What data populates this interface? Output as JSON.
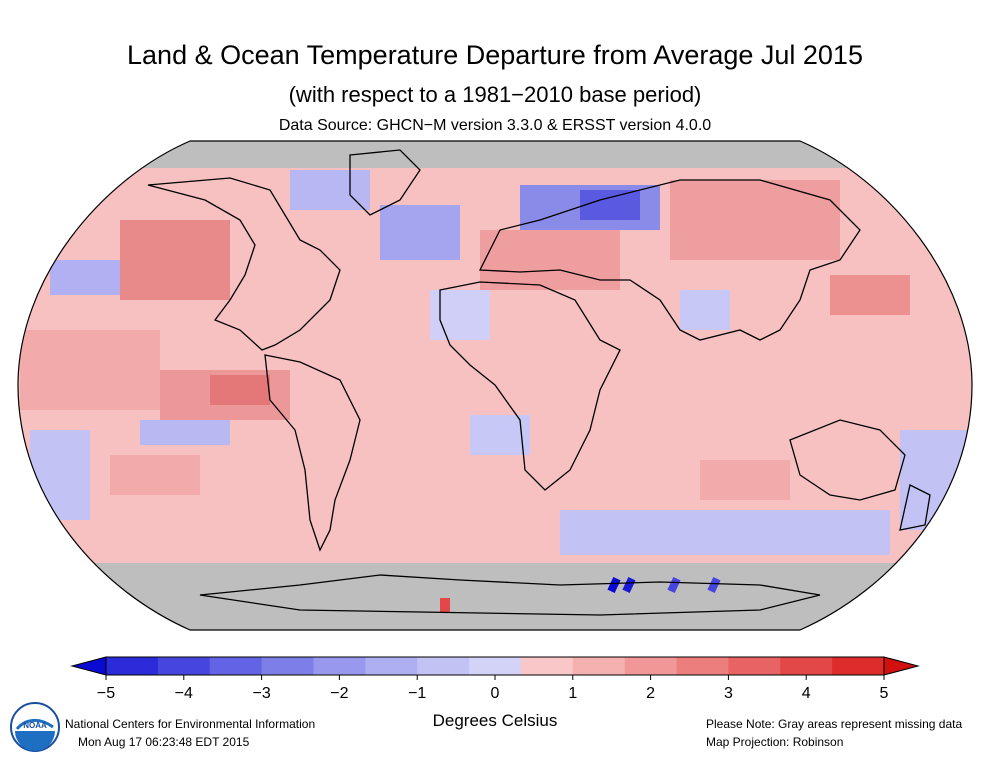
{
  "header": {
    "title": "Land & Ocean Temperature Departure from Average Jul 2015",
    "subtitle": "(with respect to a 1981−2010 base period)",
    "source": "Data Source: GHCN−M version 3.3.0 & ERSST version 4.0.0"
  },
  "map": {
    "projection_label": "Map Projection: Robinson",
    "missing_color": "#bebebe",
    "ocean_default_color": "#f7c1c1"
  },
  "colorbar": {
    "ticks": [
      "−5",
      "−4",
      "−3",
      "−2",
      "−1",
      "0",
      "1",
      "2",
      "3",
      "4",
      "5"
    ],
    "colors": [
      "#0a0ad2",
      "#2b2bd9",
      "#4646df",
      "#6363e5",
      "#7e7ee9",
      "#9898ee",
      "#aeaef2",
      "#c2c2f5",
      "#d3d3f8",
      "#f9c7c7",
      "#f5b0b0",
      "#f19797",
      "#ec7e7e",
      "#e86363",
      "#e34848",
      "#de2b2b",
      "#d11010"
    ],
    "units": "Degrees Celsius",
    "min": -5,
    "max": 5
  },
  "footer": {
    "org": "National Centers for Environmental Information",
    "timestamp": "Mon Aug 17 06:23:48 EDT 2015",
    "note": "Please Note: Gray areas represent missing data",
    "projection": "Map Projection: Robinson"
  },
  "logo": {
    "icon": "noaa-logo-icon",
    "text": "NOAA"
  }
}
